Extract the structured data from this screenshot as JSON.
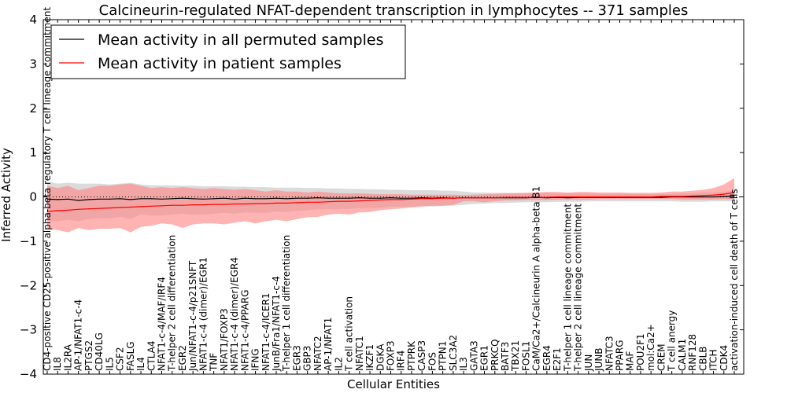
{
  "chart_data": {
    "type": "line",
    "title": "Calcineurin-regulated NFAT-dependent transcription in lymphocytes -- 371 samples",
    "xlabel": "Cellular Entities",
    "ylabel": "Inferred Activity",
    "ylim": [
      -4,
      4
    ],
    "yticks": [
      -4,
      -3,
      -2,
      -1,
      0,
      1,
      2,
      3,
      4
    ],
    "ytick_labels": [
      "−4",
      "−3",
      "−2",
      "−1",
      "0",
      "1",
      "2",
      "3",
      "4"
    ],
    "grid": false,
    "legend_position": "top-left",
    "zero_line": "dotted",
    "categories": [
      "CD4-positive CD25-positive alpha-beta regulatory T cell lineage commitment",
      "IL8",
      "IL2RA",
      "AP-1/NFAT1-c-4",
      "PTGS2",
      "CD40LG",
      "IL5",
      "CSF2",
      "FASLG",
      "IL4",
      "CTLA4",
      "NFAT1-c-4/MAF/IRF4",
      "T-helper 2 cell differentiation",
      "EGR2",
      "Jun/NFAT1-c-4/p21SNFT",
      "NFAT1-c-4 (dimer)/EGR1",
      "TNF",
      "NFAT1/FOXP3",
      "NFAT1-c-4 (dimer)/EGR4",
      "NFAT1-c-4/PPARG",
      "IFNG",
      "NFAT1-c-4/ICER1",
      "JunB/Fra1/NFAT1-c-4",
      "T-helper 1 cell differentiation",
      "EGR3",
      "GBP3",
      "NFATC2",
      "AP-1/NFAT1",
      "IL2",
      "T cell activation",
      "NFATC1",
      "IKZF1",
      "DGKA",
      "FOXP3",
      "IRF4",
      "PTPRK",
      "CASP3",
      "FOS",
      "PTPN1",
      "SLC3A2",
      "IL3",
      "GATA3",
      "EGR1",
      "PRKCQ",
      "BATF3",
      "TBX21",
      "FOSL1",
      "CaM/Ca2+/Calcineurin A alpha-beta B1",
      "EGR4",
      "E2F1",
      "T-helper 1 cell lineage commitment",
      "T-helper 2 cell lineage commitment",
      "JUN",
      "JUNB",
      "NFATC3",
      "PPARG",
      "MAF",
      "POU2F1",
      "mol:Ca2+",
      "CREM",
      "T cell anergy",
      "CALM1",
      "RNF128",
      "CBLB",
      "ITCH",
      "CDK4",
      "activation-induced cell death of T cells"
    ],
    "series": [
      {
        "name": "Mean activity in all permuted samples",
        "color": "#000000",
        "values": [
          -0.05,
          -0.06,
          -0.05,
          -0.08,
          -0.06,
          -0.05,
          -0.05,
          -0.04,
          -0.06,
          -0.04,
          -0.04,
          -0.05,
          -0.04,
          -0.03,
          -0.04,
          -0.05,
          -0.04,
          -0.03,
          -0.05,
          -0.03,
          -0.04,
          -0.04,
          -0.03,
          -0.04,
          -0.03,
          -0.03,
          -0.02,
          -0.03,
          -0.03,
          -0.03,
          -0.02,
          -0.03,
          -0.03,
          -0.02,
          -0.03,
          -0.03,
          -0.02,
          -0.03,
          -0.02,
          -0.03,
          -0.02,
          -0.02,
          -0.02,
          -0.02,
          -0.02,
          -0.02,
          -0.02,
          -0.01,
          -0.02,
          -0.01,
          -0.02,
          -0.01,
          -0.01,
          -0.01,
          -0.01,
          -0.01,
          -0.01,
          -0.01,
          -0.01,
          -0.01,
          0.0,
          0.0,
          0.0,
          0.0,
          0.0,
          0.01,
          0.02
        ],
        "lower": [
          -0.55,
          -0.55,
          -0.52,
          -0.55,
          -0.5,
          -0.48,
          -0.48,
          -0.45,
          -0.5,
          -0.4,
          -0.42,
          -0.42,
          -0.4,
          -0.38,
          -0.4,
          -0.4,
          -0.38,
          -0.36,
          -0.38,
          -0.35,
          -0.36,
          -0.36,
          -0.33,
          -0.34,
          -0.32,
          -0.3,
          -0.28,
          -0.28,
          -0.28,
          -0.27,
          -0.25,
          -0.25,
          -0.25,
          -0.22,
          -0.22,
          -0.22,
          -0.2,
          -0.22,
          -0.2,
          -0.2,
          -0.18,
          -0.16,
          -0.15,
          -0.14,
          -0.14,
          -0.13,
          -0.12,
          -0.12,
          -0.12,
          -0.11,
          -0.11,
          -0.11,
          -0.1,
          -0.1,
          -0.1,
          -0.1,
          -0.1,
          -0.1,
          -0.1,
          -0.1,
          -0.1,
          -0.11,
          -0.11,
          -0.11,
          -0.1,
          -0.1,
          -0.1
        ],
        "upper": [
          0.35,
          0.3,
          0.32,
          0.3,
          0.3,
          0.3,
          0.28,
          0.3,
          0.32,
          0.28,
          0.26,
          0.26,
          0.26,
          0.25,
          0.25,
          0.24,
          0.24,
          0.24,
          0.23,
          0.23,
          0.22,
          0.22,
          0.21,
          0.21,
          0.21,
          0.2,
          0.2,
          0.19,
          0.19,
          0.18,
          0.18,
          0.17,
          0.17,
          0.16,
          0.16,
          0.15,
          0.15,
          0.15,
          0.14,
          0.14,
          0.12,
          0.1,
          0.1,
          0.09,
          0.09,
          0.09,
          0.09,
          0.08,
          0.09,
          0.08,
          0.08,
          0.08,
          0.08,
          0.07,
          0.07,
          0.07,
          0.07,
          0.07,
          0.06,
          0.07,
          0.07,
          0.08,
          0.08,
          0.1,
          0.1,
          0.12,
          0.14
        ],
        "band_color": "#b0b0b0"
      },
      {
        "name": "Mean activity in patient samples",
        "color": "#ff0000",
        "values": [
          -0.33,
          -0.31,
          -0.3,
          -0.28,
          -0.27,
          -0.26,
          -0.25,
          -0.24,
          -0.23,
          -0.22,
          -0.21,
          -0.2,
          -0.19,
          -0.19,
          -0.18,
          -0.18,
          -0.17,
          -0.17,
          -0.16,
          -0.16,
          -0.15,
          -0.15,
          -0.14,
          -0.14,
          -0.13,
          -0.12,
          -0.12,
          -0.11,
          -0.1,
          -0.1,
          -0.09,
          -0.08,
          -0.07,
          -0.06,
          -0.06,
          -0.05,
          -0.04,
          -0.04,
          -0.03,
          -0.03,
          -0.02,
          -0.02,
          -0.02,
          -0.02,
          -0.01,
          -0.01,
          -0.01,
          -0.01,
          -0.01,
          0.0,
          0.0,
          0.0,
          0.0,
          0.0,
          0.0,
          0.0,
          0.0,
          0.0,
          0.0,
          0.01,
          0.01,
          0.01,
          0.02,
          0.03,
          0.04,
          0.06,
          0.1
        ],
        "lower": [
          -0.72,
          -0.75,
          -0.8,
          -0.7,
          -0.75,
          -0.72,
          -0.72,
          -0.7,
          -0.8,
          -0.68,
          -0.65,
          -0.6,
          -0.62,
          -0.7,
          -0.62,
          -0.6,
          -0.6,
          -0.62,
          -0.58,
          -0.55,
          -0.6,
          -0.55,
          -0.52,
          -0.55,
          -0.5,
          -0.46,
          -0.45,
          -0.4,
          -0.38,
          -0.4,
          -0.35,
          -0.34,
          -0.3,
          -0.28,
          -0.26,
          -0.24,
          -0.22,
          -0.2,
          -0.2,
          -0.18,
          -0.1,
          -0.1,
          -0.12,
          -0.1,
          -0.08,
          -0.08,
          -0.07,
          -0.07,
          -0.07,
          -0.06,
          -0.06,
          -0.06,
          -0.06,
          -0.05,
          -0.05,
          -0.05,
          -0.05,
          -0.05,
          -0.05,
          -0.05,
          -0.05,
          -0.06,
          -0.06,
          -0.06,
          -0.06,
          -0.05,
          -0.05
        ],
        "upper": [
          0.25,
          0.2,
          0.25,
          0.15,
          0.2,
          0.25,
          0.25,
          0.28,
          0.3,
          0.25,
          0.2,
          0.22,
          0.2,
          0.22,
          0.2,
          0.18,
          0.2,
          0.18,
          0.16,
          0.18,
          0.15,
          0.12,
          0.15,
          0.12,
          0.12,
          0.1,
          0.12,
          0.1,
          0.08,
          0.08,
          0.08,
          0.07,
          0.06,
          0.06,
          0.06,
          0.05,
          0.05,
          0.05,
          0.05,
          0.05,
          0.04,
          0.05,
          0.06,
          0.07,
          0.08,
          0.08,
          0.09,
          0.1,
          0.11,
          0.11,
          0.1,
          0.11,
          0.11,
          0.1,
          0.1,
          0.1,
          0.09,
          0.09,
          0.09,
          0.1,
          0.12,
          0.12,
          0.14,
          0.16,
          0.2,
          0.28,
          0.42
        ],
        "band_color": "#ff8080"
      }
    ]
  }
}
